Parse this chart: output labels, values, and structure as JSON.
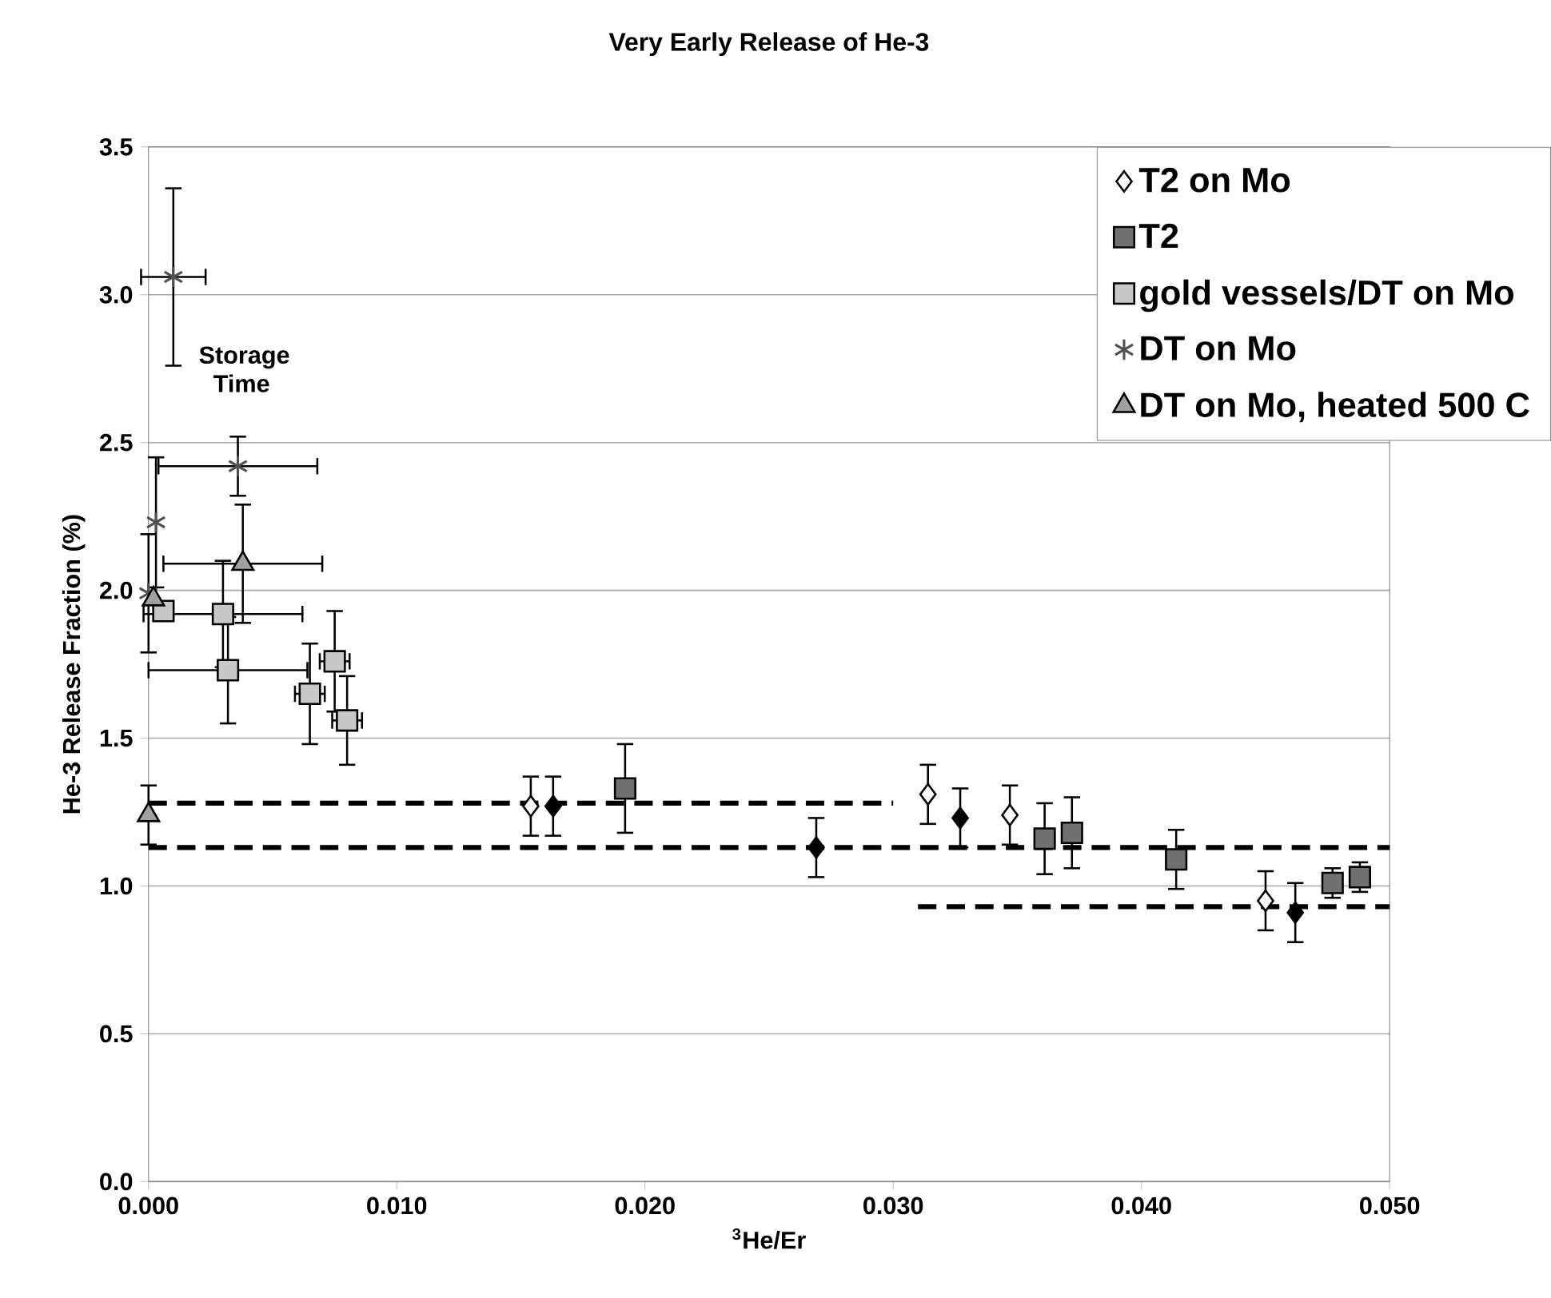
{
  "chart_data": {
    "type": "scatter",
    "title": "Very Early Release of He-3",
    "xlabel": "$^{3}$He/Er",
    "ylabel": "He-3 Release Fraction (%)",
    "xlim": [
      0,
      0.05
    ],
    "ylim": [
      0,
      3.5
    ],
    "xticks": [
      {
        "value": 0,
        "label": "0.000"
      },
      {
        "value": 0.01,
        "label": "0.010"
      },
      {
        "value": 0.02,
        "label": "0.020"
      },
      {
        "value": 0.03,
        "label": "0.030"
      },
      {
        "value": 0.04,
        "label": "0.040"
      },
      {
        "value": 0.05,
        "label": "0.050"
      }
    ],
    "yticks": [
      {
        "value": 0,
        "label": "0.0"
      },
      {
        "value": 0.5,
        "label": "0.5"
      },
      {
        "value": 1,
        "label": "1.0"
      },
      {
        "value": 1.5,
        "label": "1.5"
      },
      {
        "value": 2,
        "label": "2.0"
      },
      {
        "value": 2.5,
        "label": "2.5"
      },
      {
        "value": 3,
        "label": "3.0"
      },
      {
        "value": 3.5,
        "label": "3.5"
      }
    ],
    "grid": "y",
    "legend": "top right",
    "annotations": [
      "Storage Time"
    ],
    "series": [
      {
        "name": "T2 on Mo",
        "marker": "diamond",
        "color": "#ffffff",
        "x": [
          0.0154,
          0.0314,
          0.0347,
          0.045
        ],
        "values": [
          1.27,
          1.31,
          1.24,
          0.95
        ],
        "errors": [
          0.1,
          0.1,
          0.1,
          0.1
        ]
      },
      {
        "name": "T2",
        "marker": "square",
        "color": "#707070",
        "x": [
          0.0192,
          0.0361,
          0.0372,
          0.0414,
          0.0477,
          0.0488
        ],
        "values": [
          1.33,
          1.16,
          1.18,
          1.09,
          1.01,
          1.03
        ],
        "errors": [
          0.15,
          0.12,
          0.12,
          0.1,
          0.05,
          0.05
        ]
      },
      {
        "name": "gold vessels/DT on Mo",
        "marker": "square",
        "color": "#c8c8c8",
        "x": [
          0.0006,
          0.003,
          0.0032,
          0.0065,
          0.0075,
          0.008
        ],
        "values": [
          1.93,
          1.92,
          1.73,
          1.65,
          1.76,
          1.56
        ],
        "errors": [
          null,
          0.18,
          0.18,
          0.17,
          0.17,
          0.15
        ],
        "xerrors": [
          null,
          0.0032,
          0.0032,
          0.0006,
          0.0006,
          0.0006
        ]
      },
      {
        "name": "DT on Mo",
        "marker": "cross",
        "color": "#505050",
        "x": [
          0.001,
          0.0036,
          0.0003,
          0
        ],
        "values": [
          3.06,
          2.42,
          2.23,
          1.99
        ],
        "errors": [
          0.3,
          0.1,
          0.22,
          0.2
        ],
        "xerrors": [
          0.0013,
          0.0032,
          null,
          null
        ]
      },
      {
        "name": "DT on Mo, heated 500 C",
        "marker": "triangle",
        "color": "#a0a0a0",
        "x": [
          0.0038,
          0.0002,
          0
        ],
        "values": [
          2.09,
          1.97,
          1.24
        ],
        "errors": [
          0.2,
          null,
          0.1
        ],
        "xerrors": [
          0.0032,
          null,
          null
        ]
      },
      {
        "marker": "diamond",
        "color": "#000000",
        "x": [
          0.0163,
          0.0269,
          0.0327,
          0.0462
        ],
        "values": [
          1.27,
          1.13,
          1.23,
          0.91
        ],
        "errors": [
          0.1,
          0.1,
          0.1,
          0.1
        ]
      },
      {
        "type": "line",
        "marker": "none",
        "line_style": "dashed",
        "color": "#000000",
        "x": [
          0,
          0.03
        ],
        "values": [
          1.28,
          1.28
        ]
      },
      {
        "type": "line",
        "marker": "none",
        "line_style": "dashed",
        "color": "#000000",
        "x": [
          0,
          0.05
        ],
        "values": [
          1.13,
          1.13
        ]
      },
      {
        "type": "line",
        "marker": "none",
        "line_style": "dashed",
        "color": "#000000",
        "x": [
          0.031,
          0.05
        ],
        "values": [
          0.93,
          0.93
        ]
      }
    ]
  }
}
